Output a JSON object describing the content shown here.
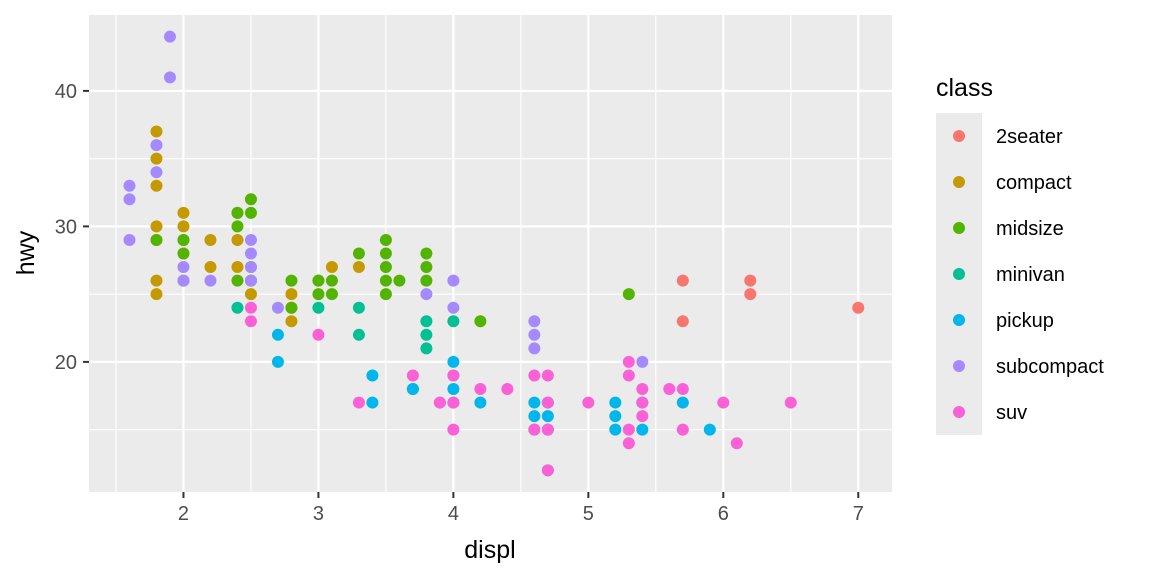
{
  "chart_data": {
    "type": "scatter",
    "xlabel": "displ",
    "ylabel": "hwy",
    "xlim": [
      1.3,
      7.25
    ],
    "ylim": [
      10.4,
      45.6
    ],
    "x_ticks": [
      2,
      3,
      4,
      5,
      6,
      7
    ],
    "x_tick_labels": [
      "2",
      "3",
      "4",
      "5",
      "6",
      "7"
    ],
    "y_ticks": [
      20,
      30,
      40
    ],
    "y_tick_labels": [
      "20",
      "30",
      "40"
    ],
    "x_minor_ticks": [
      1.5,
      2.5,
      3.5,
      4.5,
      5.5,
      6.5
    ],
    "y_minor_ticks": [
      15,
      25,
      35
    ],
    "grid": true,
    "legend": {
      "title": "class",
      "position": "right"
    },
    "series": [
      {
        "name": "2seater",
        "color": "#F8766D",
        "points": [
          [
            5.7,
            26
          ],
          [
            5.7,
            23
          ],
          [
            6.2,
            26
          ],
          [
            6.2,
            25
          ],
          [
            7.0,
            24
          ]
        ]
      },
      {
        "name": "compact",
        "color": "#C49A00",
        "points": [
          [
            1.8,
            37
          ],
          [
            1.8,
            35
          ],
          [
            1.8,
            33
          ],
          [
            1.8,
            30
          ],
          [
            1.8,
            29
          ],
          [
            1.8,
            26
          ],
          [
            1.8,
            25
          ],
          [
            2.0,
            31
          ],
          [
            2.0,
            30
          ],
          [
            2.0,
            29
          ],
          [
            2.0,
            28
          ],
          [
            2.0,
            26
          ],
          [
            2.2,
            29
          ],
          [
            2.2,
            27
          ],
          [
            2.4,
            31
          ],
          [
            2.4,
            29
          ],
          [
            2.4,
            27
          ],
          [
            2.5,
            27
          ],
          [
            2.5,
            26
          ],
          [
            2.5,
            25
          ],
          [
            2.8,
            25
          ],
          [
            2.8,
            24
          ],
          [
            2.8,
            23
          ],
          [
            3.0,
            26
          ],
          [
            3.1,
            27
          ],
          [
            3.3,
            27
          ]
        ]
      },
      {
        "name": "midsize",
        "color": "#53B400",
        "points": [
          [
            1.8,
            29
          ],
          [
            2.0,
            29
          ],
          [
            2.0,
            28
          ],
          [
            2.4,
            30
          ],
          [
            2.4,
            31
          ],
          [
            2.4,
            26
          ],
          [
            2.5,
            32
          ],
          [
            2.5,
            31
          ],
          [
            2.5,
            26
          ],
          [
            2.8,
            26
          ],
          [
            2.8,
            24
          ],
          [
            3.0,
            25
          ],
          [
            3.0,
            26
          ],
          [
            3.1,
            26
          ],
          [
            3.1,
            25
          ],
          [
            3.3,
            28
          ],
          [
            3.5,
            29
          ],
          [
            3.5,
            28
          ],
          [
            3.5,
            27
          ],
          [
            3.5,
            26
          ],
          [
            3.5,
            25
          ],
          [
            3.6,
            26
          ],
          [
            3.8,
            28
          ],
          [
            3.8,
            27
          ],
          [
            3.8,
            26
          ],
          [
            4.2,
            23
          ],
          [
            5.3,
            25
          ]
        ]
      },
      {
        "name": "minivan",
        "color": "#00C094",
        "points": [
          [
            2.4,
            24
          ],
          [
            3.0,
            24
          ],
          [
            3.3,
            24
          ],
          [
            3.3,
            22
          ],
          [
            3.8,
            23
          ],
          [
            3.8,
            22
          ],
          [
            3.8,
            21
          ],
          [
            4.0,
            23
          ],
          [
            3.7,
            18
          ]
        ]
      },
      {
        "name": "pickup",
        "color": "#00B6EB",
        "points": [
          [
            2.7,
            22
          ],
          [
            2.7,
            20
          ],
          [
            3.4,
            19
          ],
          [
            3.4,
            17
          ],
          [
            3.7,
            18
          ],
          [
            4.0,
            20
          ],
          [
            4.0,
            19
          ],
          [
            4.0,
            18
          ],
          [
            4.0,
            17
          ],
          [
            4.2,
            17
          ],
          [
            4.6,
            17
          ],
          [
            4.6,
            16
          ],
          [
            4.6,
            15
          ],
          [
            4.7,
            17
          ],
          [
            4.7,
            16
          ],
          [
            4.7,
            15
          ],
          [
            4.7,
            12
          ],
          [
            5.2,
            17
          ],
          [
            5.2,
            16
          ],
          [
            5.2,
            15
          ],
          [
            5.4,
            17
          ],
          [
            5.4,
            15
          ],
          [
            5.7,
            17
          ],
          [
            5.9,
            15
          ]
        ]
      },
      {
        "name": "subcompact",
        "color": "#A58AFF",
        "points": [
          [
            1.6,
            33
          ],
          [
            1.6,
            32
          ],
          [
            1.6,
            29
          ],
          [
            1.8,
            36
          ],
          [
            1.8,
            34
          ],
          [
            1.9,
            44
          ],
          [
            1.9,
            41
          ],
          [
            2.0,
            27
          ],
          [
            2.0,
            26
          ],
          [
            2.2,
            26
          ],
          [
            2.5,
            29
          ],
          [
            2.5,
            28
          ],
          [
            2.5,
            27
          ],
          [
            2.5,
            26
          ],
          [
            2.7,
            24
          ],
          [
            3.8,
            25
          ],
          [
            4.0,
            26
          ],
          [
            4.0,
            24
          ],
          [
            4.6,
            23
          ],
          [
            4.6,
            22
          ],
          [
            4.6,
            21
          ],
          [
            5.4,
            20
          ],
          [
            3.9,
            17
          ]
        ]
      },
      {
        "name": "suv",
        "color": "#FB61D7",
        "points": [
          [
            2.5,
            24
          ],
          [
            2.5,
            23
          ],
          [
            3.0,
            22
          ],
          [
            3.3,
            17
          ],
          [
            3.7,
            19
          ],
          [
            3.9,
            17
          ],
          [
            4.0,
            19
          ],
          [
            4.0,
            17
          ],
          [
            4.0,
            15
          ],
          [
            4.2,
            18
          ],
          [
            4.4,
            18
          ],
          [
            4.6,
            19
          ],
          [
            4.6,
            15
          ],
          [
            4.7,
            19
          ],
          [
            4.7,
            17
          ],
          [
            4.7,
            15
          ],
          [
            4.7,
            12
          ],
          [
            5.0,
            17
          ],
          [
            5.3,
            20
          ],
          [
            5.3,
            19
          ],
          [
            5.3,
            15
          ],
          [
            5.3,
            14
          ],
          [
            5.4,
            18
          ],
          [
            5.4,
            17
          ],
          [
            5.4,
            16
          ],
          [
            5.6,
            18
          ],
          [
            5.7,
            18
          ],
          [
            5.7,
            15
          ],
          [
            6.0,
            17
          ],
          [
            6.1,
            14
          ],
          [
            6.5,
            17
          ]
        ]
      }
    ]
  }
}
